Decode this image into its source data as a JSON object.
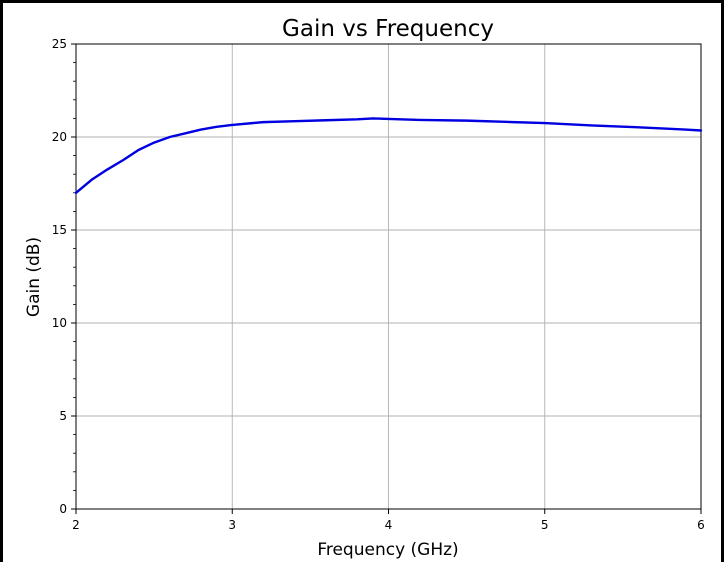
{
  "chart_data": {
    "type": "line",
    "title": "Gain vs Frequency",
    "xlabel": "Frequency (GHz)",
    "ylabel": "Gain (dB)",
    "xlim": [
      2,
      6
    ],
    "ylim": [
      0,
      25
    ],
    "xticks": [
      2,
      3,
      4,
      5,
      6
    ],
    "yticks": [
      0,
      5,
      10,
      15,
      20,
      25
    ],
    "y_minor_step": 1,
    "grid": true,
    "legend": "none",
    "series": [
      {
        "color": "#0000e0",
        "x": [
          2.0,
          2.1,
          2.2,
          2.3,
          2.4,
          2.5,
          2.6,
          2.7,
          2.8,
          2.9,
          3.0,
          3.2,
          3.4,
          3.6,
          3.8,
          3.9,
          4.0,
          4.2,
          4.5,
          4.8,
          5.0,
          5.3,
          5.6,
          5.9,
          6.0
        ],
        "y": [
          17.0,
          17.7,
          18.25,
          18.75,
          19.3,
          19.7,
          20.0,
          20.2,
          20.4,
          20.55,
          20.65,
          20.8,
          20.85,
          20.9,
          20.95,
          21.0,
          20.97,
          20.92,
          20.88,
          20.8,
          20.75,
          20.62,
          20.52,
          20.4,
          20.35
        ]
      }
    ]
  }
}
